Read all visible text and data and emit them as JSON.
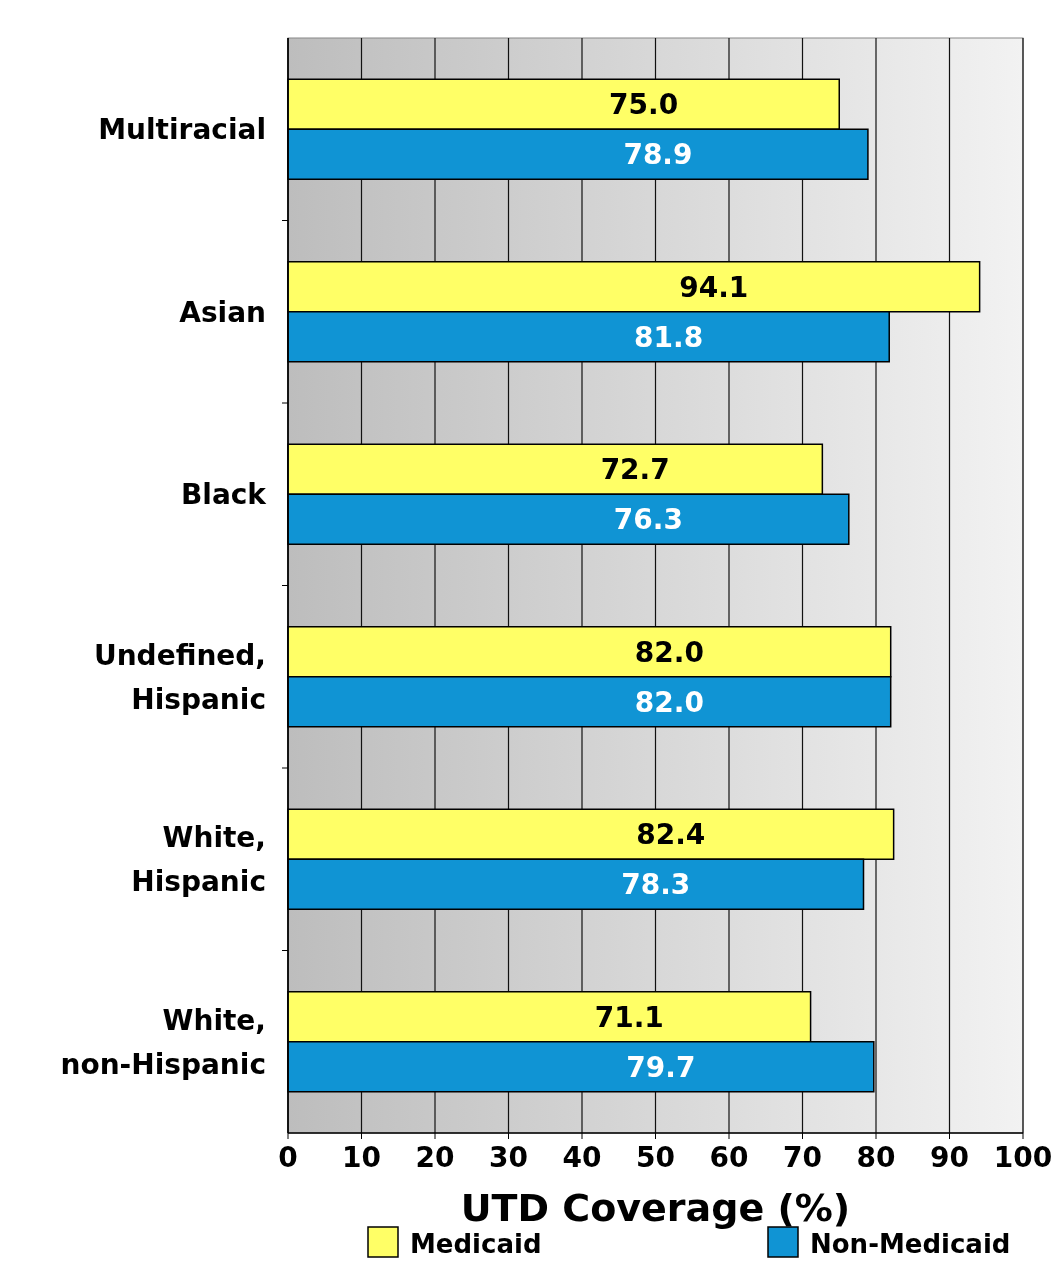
{
  "chart_data": {
    "type": "bar",
    "orientation": "horizontal",
    "xlabel": "UTD Coverage (%)",
    "categories": [
      "Multiracial",
      "Asian",
      "Black",
      "Undefined, Hispanic",
      "White, Hispanic",
      "White, non-Hispanic"
    ],
    "series": [
      {
        "name": "Medicaid",
        "color": "#ffff66",
        "values": [
          75.0,
          94.1,
          72.7,
          82.0,
          82.4,
          71.1
        ],
        "value_labels": [
          "75.0",
          "94.1",
          "72.7",
          "82.0",
          "82.4",
          "71.1"
        ]
      },
      {
        "name": "Non-Medicaid",
        "color": "#1094d4",
        "values": [
          78.9,
          81.8,
          76.3,
          82.0,
          78.3,
          79.7
        ],
        "value_labels": [
          "78.9",
          "81.8",
          "76.3",
          "82.0",
          "78.3",
          "79.7"
        ]
      }
    ],
    "xlim": [
      0,
      100
    ],
    "xticks": [
      0,
      10,
      20,
      30,
      40,
      50,
      60,
      70,
      80,
      90,
      100
    ],
    "grid": "x",
    "legend": "bottom"
  }
}
